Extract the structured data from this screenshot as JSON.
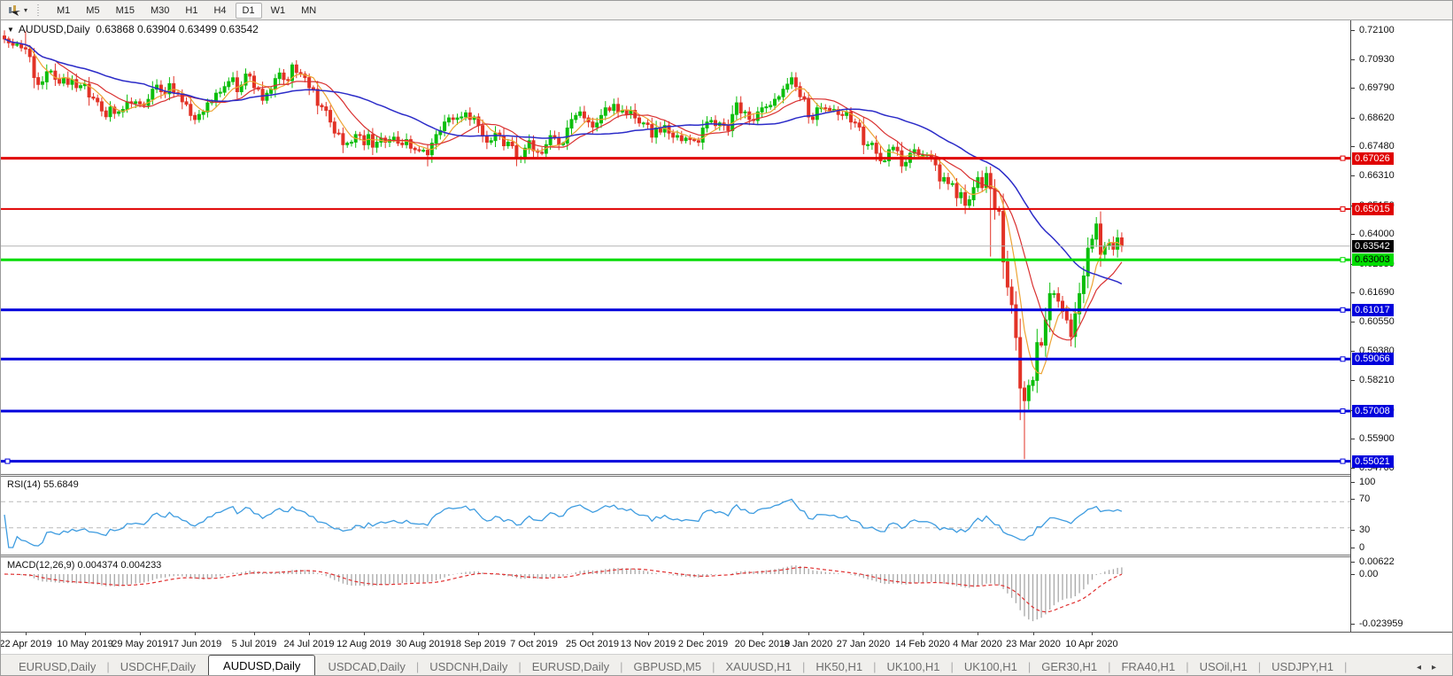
{
  "toolbar": {
    "tool_icon": "chart-cursor",
    "timeframes": [
      {
        "label": "M1",
        "active": false
      },
      {
        "label": "M5",
        "active": false
      },
      {
        "label": "M15",
        "active": false
      },
      {
        "label": "M30",
        "active": false
      },
      {
        "label": "H1",
        "active": false
      },
      {
        "label": "H4",
        "active": false
      },
      {
        "label": "D1",
        "active": true
      },
      {
        "label": "W1",
        "active": false
      },
      {
        "label": "MN",
        "active": false
      }
    ]
  },
  "chart": {
    "title": {
      "symbol": "AUDUSD,Daily",
      "ohlc": "0.63868 0.63904 0.63499 0.63542"
    },
    "lines": [
      {
        "label": "0.67026",
        "price": 0.67026,
        "color": "#e00000",
        "width": 3,
        "badge_bg": "#e00000",
        "badge_text": "#ffffff"
      },
      {
        "label": "0.65015",
        "price": 0.65015,
        "color": "#e00000",
        "width": 2,
        "badge_bg": "#e00000",
        "badge_text": "#ffffff"
      },
      {
        "label": "0.63542",
        "price": 0.63542,
        "color": "#b4b4b4",
        "width": 1,
        "badge_bg": "#000000",
        "badge_text": "#ffffff",
        "current": true
      },
      {
        "label": "0.63003",
        "price": 0.63003,
        "color": "#00dc00",
        "width": 3,
        "badge_bg": "#00dc00",
        "badge_text": "#000000"
      },
      {
        "label": "0.61017",
        "price": 0.61017,
        "color": "#0000dc",
        "width": 3,
        "badge_bg": "#0000dc",
        "badge_text": "#ffffff"
      },
      {
        "label": "0.59066",
        "price": 0.59066,
        "color": "#0000dc",
        "width": 3,
        "badge_bg": "#0000dc",
        "badge_text": "#ffffff"
      },
      {
        "label": "0.57008",
        "price": 0.57008,
        "color": "#0000dc",
        "width": 3,
        "badge_bg": "#0000dc",
        "badge_text": "#ffffff"
      },
      {
        "label": "0.55021",
        "price": 0.55021,
        "color": "#0000dc",
        "width": 3,
        "badge_bg": "#0000dc",
        "badge_text": "#ffffff"
      }
    ]
  },
  "price_axis": {
    "ticks": [
      "0.72100",
      "0.70930",
      "0.69790",
      "0.68620",
      "0.67480",
      "0.66310",
      "0.65150",
      "0.64000",
      "0.62830",
      "0.61690",
      "0.60550",
      "0.59380",
      "0.58210",
      "0.57040",
      "0.55900",
      "0.54760"
    ],
    "tick_values": [
      0.721,
      0.7093,
      0.6979,
      0.6862,
      0.6748,
      0.6631,
      0.6515,
      0.64,
      0.6283,
      0.6169,
      0.6055,
      0.5938,
      0.5821,
      0.5704,
      0.559,
      0.5476
    ]
  },
  "rsi": {
    "name": "RSI(14)",
    "value": "55.6849",
    "period": 14,
    "axis_labels": [
      "100",
      "70",
      "30",
      "0"
    ],
    "levels": [
      70,
      30
    ],
    "line_color": "#3e9ce0"
  },
  "macd": {
    "name": "MACD(12,26,9)",
    "values": "0.004374 0.004233",
    "fast": 12,
    "slow": 26,
    "signal": 9,
    "axis_labels": [
      "0.00622",
      "0.00",
      "-0.023959"
    ],
    "hist_color": "#a8a8a8",
    "signal_color": "#e03030"
  },
  "date_axis": {
    "labels": [
      "22 Apr 2019",
      "10 May 2019",
      "29 May 2019",
      "17 Jun 2019",
      "5 Jul 2019",
      "24 Jul 2019",
      "12 Aug 2019",
      "30 Aug 2019",
      "18 Sep 2019",
      "7 Oct 2019",
      "25 Oct 2019",
      "13 Nov 2019",
      "2 Dec 2019",
      "20 Dec 2019",
      "8 Jan 2020",
      "27 Jan 2020",
      "14 Feb 2020",
      "4 Mar 2020",
      "23 Mar 2020",
      "10 Apr 2020"
    ],
    "tick_indices": [
      5,
      19,
      32,
      45,
      59,
      72,
      85,
      99,
      112,
      125,
      139,
      152,
      165,
      179,
      190,
      203,
      217,
      230,
      243,
      257
    ]
  },
  "tabs": [
    {
      "label": "EURUSD,Daily",
      "active": false
    },
    {
      "label": "USDCHF,Daily",
      "active": false
    },
    {
      "label": "AUDUSD,Daily",
      "active": true
    },
    {
      "label": "USDCAD,Daily",
      "active": false
    },
    {
      "label": "USDCNH,Daily",
      "active": false
    },
    {
      "label": "EURUSD,Daily",
      "active": false
    },
    {
      "label": "GBPUSD,M5",
      "active": false
    },
    {
      "label": "XAUUSD,H1",
      "active": false
    },
    {
      "label": "HK50,H1",
      "active": false
    },
    {
      "label": "UK100,H1",
      "active": false
    },
    {
      "label": "UK100,H1",
      "active": false
    },
    {
      "label": "GER30,H1",
      "active": false
    },
    {
      "label": "FRA40,H1",
      "active": false
    },
    {
      "label": "USOil,H1",
      "active": false
    },
    {
      "label": "USDJPY,H1",
      "active": false
    }
  ],
  "chart_data": {
    "type": "candlestick",
    "symbol": "AUDUSD",
    "timeframe": "Daily",
    "ohlc_current": {
      "open": 0.63868,
      "high": 0.63904,
      "low": 0.63499,
      "close": 0.63542
    },
    "y_axis_range": [
      0.5476,
      0.721
    ],
    "up_color": "#0cbe0c",
    "down_color": "#e23226",
    "moving_averages": [
      {
        "period": 6,
        "color": "#eda332"
      },
      {
        "period": 13,
        "color": "#d93030"
      },
      {
        "period": 34,
        "color": "#2b2bc8"
      }
    ],
    "closes": [
      0.7175,
      0.716,
      0.715,
      0.7155,
      0.714,
      0.7135,
      0.7105,
      0.7022,
      0.6995,
      0.7005,
      0.7045,
      0.7048,
      0.7015,
      0.7,
      0.702,
      0.6995,
      0.7014,
      0.6982,
      0.699,
      0.6996,
      0.6945,
      0.694,
      0.6926,
      0.689,
      0.6867,
      0.6905,
      0.688,
      0.6886,
      0.6896,
      0.6926,
      0.692,
      0.6926,
      0.6918,
      0.6912,
      0.6936,
      0.6976,
      0.6992,
      0.6966,
      0.6958,
      0.6998,
      0.6962,
      0.6958,
      0.6926,
      0.6916,
      0.6872,
      0.6856,
      0.6876,
      0.6886,
      0.6922,
      0.6926,
      0.696,
      0.6964,
      0.6986,
      0.7006,
      0.7021,
      0.6966,
      0.6992,
      0.7036,
      0.7028,
      0.6982,
      0.6976,
      0.6932,
      0.696,
      0.6976,
      0.7018,
      0.704,
      0.7014,
      0.701,
      0.7072,
      0.7042,
      0.7036,
      0.7022,
      0.6982,
      0.6976,
      0.6912,
      0.6906,
      0.6892,
      0.6846,
      0.6802,
      0.68,
      0.6756,
      0.6762,
      0.6766,
      0.6796,
      0.6792,
      0.6756,
      0.6796,
      0.6746,
      0.6766,
      0.6782,
      0.6766,
      0.6776,
      0.6786,
      0.6762,
      0.6756,
      0.6776,
      0.6742,
      0.6736,
      0.6732,
      0.6734,
      0.6716,
      0.6762,
      0.6796,
      0.6812,
      0.6846,
      0.6862,
      0.6856,
      0.6862,
      0.6866,
      0.6882,
      0.6856,
      0.6866,
      0.6832,
      0.6792,
      0.6766,
      0.6772,
      0.6802,
      0.6792,
      0.6752,
      0.6766,
      0.6752,
      0.6702,
      0.6706,
      0.6742,
      0.6772,
      0.6732,
      0.6726,
      0.6722,
      0.6756,
      0.6792,
      0.6782,
      0.6756,
      0.6762,
      0.6822,
      0.6856,
      0.6872,
      0.6886,
      0.6862,
      0.6846,
      0.6826,
      0.6842,
      0.6872,
      0.6902,
      0.6892,
      0.6916,
      0.6886,
      0.6892,
      0.6876,
      0.6892,
      0.6862,
      0.6842,
      0.6842,
      0.6836,
      0.6786,
      0.6822,
      0.6806,
      0.6832,
      0.6802,
      0.6786,
      0.6792,
      0.6772,
      0.6782,
      0.6776,
      0.6772,
      0.6766,
      0.6822,
      0.6846,
      0.6852,
      0.6832,
      0.6842,
      0.6832,
      0.6812,
      0.6876,
      0.6922,
      0.6882,
      0.6886,
      0.6856,
      0.6852,
      0.6886,
      0.6902,
      0.6906,
      0.6912,
      0.6936,
      0.6946,
      0.6976,
      0.6996,
      0.7021,
      0.6986,
      0.6946,
      0.6936,
      0.6866,
      0.6856,
      0.6902,
      0.6902,
      0.69,
      0.6892,
      0.6896,
      0.6876,
      0.6872,
      0.6886,
      0.6846,
      0.6842,
      0.6826,
      0.6756,
      0.6756,
      0.6762,
      0.6722,
      0.6692,
      0.6692,
      0.6736,
      0.6746,
      0.6732,
      0.6672,
      0.6686,
      0.6722,
      0.6736,
      0.6716,
      0.6716,
      0.6716,
      0.6702,
      0.6676,
      0.6612,
      0.6626,
      0.6602,
      0.6602,
      0.6546,
      0.6566,
      0.6516,
      0.6538,
      0.6586,
      0.6626,
      0.6586,
      0.6642,
      0.6582,
      0.6502,
      0.6492,
      0.6292,
      0.6192,
      0.6122,
      0.5992,
      0.5792,
      0.5742,
      0.5802,
      0.5822,
      0.5972,
      0.5962,
      0.6062,
      0.6166,
      0.6166,
      0.6136,
      0.6096,
      0.6062,
      0.5996,
      0.6086,
      0.6166,
      0.6236,
      0.6346,
      0.6382,
      0.6442,
      0.6322,
      0.6356,
      0.6366,
      0.6342,
      0.6387,
      0.63542
    ],
    "wick_overrides": {
      "5": {
        "h": 0.7205
      },
      "68": {
        "h": 0.7082
      },
      "100": {
        "l": 0.667
      },
      "121": {
        "l": 0.6671
      },
      "233": {
        "l": 0.6313
      },
      "240": {
        "l": 0.5665
      },
      "241": {
        "l": 0.551
      }
    }
  }
}
